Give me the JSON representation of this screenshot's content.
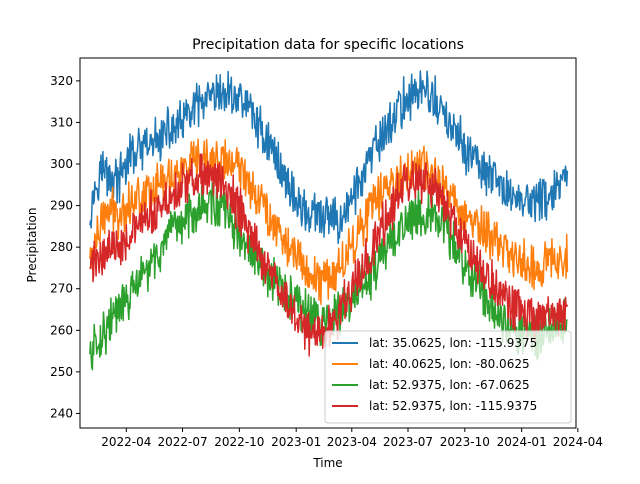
{
  "chart_data": {
    "type": "line",
    "title": "Precipitation data for specific locations",
    "xlabel": "Time",
    "ylabel": "Precipitation",
    "x_range": [
      "2022-01-16",
      "2024-03-29"
    ],
    "x_start": "2022-02-01",
    "x_end": "2024-03-15",
    "ylim": [
      236.5,
      325.5
    ],
    "y_ticks": [
      240,
      250,
      260,
      270,
      280,
      290,
      300,
      310,
      320
    ],
    "x_ticks": [
      {
        "date": "2022-04-01",
        "label": "2022-04"
      },
      {
        "date": "2022-07-01",
        "label": "2022-07"
      },
      {
        "date": "2022-10-01",
        "label": "2022-10"
      },
      {
        "date": "2023-01-01",
        "label": "2023-01"
      },
      {
        "date": "2023-04-01",
        "label": "2023-04"
      },
      {
        "date": "2023-07-01",
        "label": "2023-07"
      },
      {
        "date": "2023-10-01",
        "label": "2023-10"
      },
      {
        "date": "2024-01-01",
        "label": "2024-01"
      },
      {
        "date": "2024-04-01",
        "label": "2024-04"
      }
    ],
    "grid": false,
    "legend_position": "lower-right",
    "series": [
      {
        "name": "lat: 35.0625, lon: -115.9375",
        "color": "#1f77b4",
        "values": [
          289,
          299,
          297,
          296,
          302,
          303,
          304,
          306,
          308,
          309,
          312,
          314,
          315,
          316,
          317,
          316,
          314,
          309,
          305,
          300,
          295,
          290,
          288,
          287,
          287,
          286,
          290,
          295,
          300,
          305,
          309,
          313,
          316,
          318,
          317,
          314,
          310,
          306,
          303,
          300,
          297,
          295,
          293,
          292,
          291,
          291,
          292,
          294,
          296
        ]
      },
      {
        "name": "lat: 40.0625, lon: -80.0625",
        "color": "#ff7f0e",
        "values": [
          277,
          285,
          289,
          288,
          291,
          292,
          294,
          295,
          297,
          298,
          299,
          300,
          300,
          301,
          300,
          299,
          296,
          292,
          288,
          284,
          280,
          277,
          274,
          272,
          273,
          275,
          279,
          284,
          288,
          292,
          295,
          297,
          299,
          299,
          298,
          296,
          293,
          290,
          287,
          285,
          283,
          281,
          279,
          277,
          276,
          275,
          276,
          277,
          279
        ]
      },
      {
        "name": "lat: 52.9375, lon: -67.0625",
        "color": "#2ca02c",
        "values": [
          254,
          258,
          262,
          265,
          268,
          272,
          275,
          279,
          282,
          285,
          288,
          290,
          291,
          290,
          287,
          283,
          279,
          276,
          273,
          270,
          268,
          266,
          264,
          262,
          262,
          264,
          266,
          269,
          272,
          276,
          280,
          284,
          287,
          289,
          288,
          286,
          283,
          279,
          275,
          271,
          267,
          264,
          262,
          260,
          259,
          259,
          260,
          261,
          262
        ]
      },
      {
        "name": "lat: 52.9375, lon: -115.9375",
        "color": "#d62728",
        "values": [
          275,
          278,
          280,
          281,
          283,
          285,
          287,
          289,
          292,
          294,
          296,
          297,
          297,
          296,
          293,
          289,
          284,
          279,
          274,
          270,
          266,
          263,
          260,
          259,
          261,
          264,
          268,
          273,
          278,
          283,
          288,
          292,
          295,
          296,
          295,
          292,
          288,
          284,
          280,
          276,
          273,
          270,
          267,
          265,
          263,
          262,
          262,
          263,
          264
        ]
      }
    ]
  }
}
